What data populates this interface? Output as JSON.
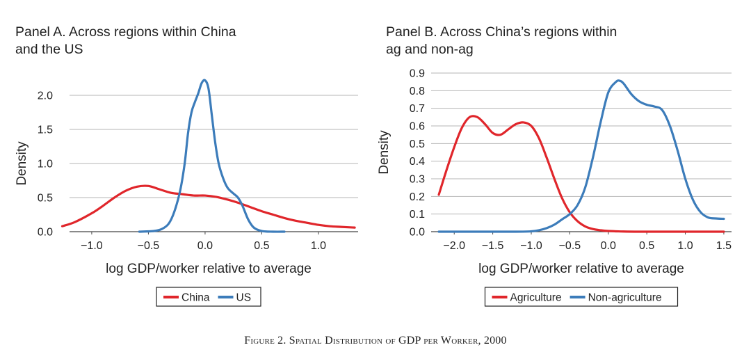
{
  "caption": "Figure 2. Spatial Distribution of GDP per Worker, 2000",
  "chart_data": [
    {
      "type": "line",
      "title": "Panel A. Across regions within China and the US",
      "title_lines": [
        "Panel A. Across regions within China",
        "and the US"
      ],
      "xlabel": "log GDP/worker relative to average",
      "ylabel": "Density",
      "xlim": [
        -1.3,
        1.35
      ],
      "ylim": [
        0,
        2.3
      ],
      "xticks": [
        -1.0,
        -0.5,
        0.0,
        0.5,
        1.0
      ],
      "xtick_labels": [
        "−1.0",
        "−0.5",
        "0.0",
        "0.5",
        "1.0"
      ],
      "yticks": [
        0.0,
        0.5,
        1.0,
        1.5,
        2.0
      ],
      "ytick_labels": [
        "0.0",
        "0.5",
        "1.0",
        "1.5",
        "2.0"
      ],
      "grid": "horizontal",
      "legend_position": "bottom",
      "series": [
        {
          "name": "China",
          "color": "#e0262b",
          "x": [
            -1.26,
            -1.15,
            -1.0,
            -0.9,
            -0.8,
            -0.7,
            -0.6,
            -0.5,
            -0.4,
            -0.3,
            -0.2,
            -0.1,
            0.0,
            0.1,
            0.2,
            0.3,
            0.4,
            0.5,
            0.6,
            0.7,
            0.8,
            0.9,
            1.0,
            1.1,
            1.2,
            1.32
          ],
          "y": [
            0.08,
            0.14,
            0.27,
            0.38,
            0.5,
            0.6,
            0.66,
            0.67,
            0.62,
            0.57,
            0.55,
            0.53,
            0.53,
            0.51,
            0.47,
            0.42,
            0.36,
            0.3,
            0.25,
            0.2,
            0.16,
            0.13,
            0.1,
            0.08,
            0.07,
            0.06
          ]
        },
        {
          "name": "US",
          "color": "#3c7cba",
          "x": [
            -0.58,
            -0.45,
            -0.38,
            -0.32,
            -0.27,
            -0.22,
            -0.18,
            -0.15,
            -0.12,
            -0.09,
            -0.06,
            -0.03,
            0.0,
            0.03,
            0.06,
            0.09,
            0.12,
            0.16,
            0.2,
            0.25,
            0.29,
            0.33,
            0.38,
            0.43,
            0.5,
            0.6,
            0.7
          ],
          "y": [
            0.0,
            0.01,
            0.04,
            0.12,
            0.3,
            0.6,
            1.0,
            1.45,
            1.75,
            1.9,
            2.03,
            2.18,
            2.22,
            2.1,
            1.7,
            1.3,
            1.0,
            0.78,
            0.64,
            0.56,
            0.5,
            0.38,
            0.18,
            0.06,
            0.01,
            0.0,
            0.0
          ]
        }
      ]
    },
    {
      "type": "line",
      "title": "Panel B. Across China’s regions within ag and non-ag",
      "title_lines": [
        "Panel B. Across China’s regions within",
        "ag and non-ag"
      ],
      "xlabel": "log GDP/worker relative to average",
      "ylabel": "Density",
      "xlim": [
        -2.3,
        1.6
      ],
      "ylim": [
        0,
        0.9
      ],
      "xticks": [
        -2.0,
        -1.5,
        -1.0,
        -0.5,
        0.0,
        0.5,
        1.0,
        1.5
      ],
      "xtick_labels": [
        "−2.0",
        "−1.5",
        "−1.0",
        "−0.5",
        "0.0",
        "0.5",
        "1.0",
        "1.5"
      ],
      "yticks": [
        0.0,
        0.1,
        0.2,
        0.3,
        0.4,
        0.5,
        0.6,
        0.7,
        0.8,
        0.9
      ],
      "ytick_labels": [
        "0.0",
        "0.1",
        "0.2",
        "0.3",
        "0.4",
        "0.5",
        "0.6",
        "0.7",
        "0.8",
        "0.9"
      ],
      "grid": "horizontal",
      "legend_position": "bottom",
      "series": [
        {
          "name": "Agriculture",
          "color": "#e0262b",
          "x": [
            -2.2,
            -2.1,
            -2.0,
            -1.9,
            -1.8,
            -1.7,
            -1.6,
            -1.5,
            -1.4,
            -1.3,
            -1.2,
            -1.1,
            -1.0,
            -0.9,
            -0.8,
            -0.7,
            -0.6,
            -0.5,
            -0.4,
            -0.3,
            -0.2,
            -0.1,
            0.0,
            0.2,
            0.4,
            0.8,
            1.2,
            1.5
          ],
          "y": [
            0.21,
            0.35,
            0.48,
            0.59,
            0.65,
            0.65,
            0.61,
            0.56,
            0.55,
            0.58,
            0.61,
            0.62,
            0.6,
            0.53,
            0.42,
            0.3,
            0.19,
            0.11,
            0.06,
            0.03,
            0.015,
            0.008,
            0.004,
            0.001,
            0.0,
            0.0,
            0.0,
            0.0
          ]
        },
        {
          "name": "Non-agriculture",
          "color": "#3c7cba",
          "x": [
            -2.2,
            -1.5,
            -1.2,
            -1.0,
            -0.9,
            -0.8,
            -0.7,
            -0.6,
            -0.5,
            -0.4,
            -0.3,
            -0.2,
            -0.1,
            0.0,
            0.1,
            0.15,
            0.2,
            0.3,
            0.4,
            0.5,
            0.6,
            0.7,
            0.8,
            0.9,
            1.0,
            1.1,
            1.2,
            1.3,
            1.4,
            1.5
          ],
          "y": [
            0.0,
            0.0,
            0.0,
            0.002,
            0.008,
            0.02,
            0.04,
            0.07,
            0.1,
            0.15,
            0.25,
            0.42,
            0.62,
            0.79,
            0.85,
            0.856,
            0.84,
            0.78,
            0.74,
            0.72,
            0.71,
            0.69,
            0.6,
            0.46,
            0.3,
            0.18,
            0.11,
            0.08,
            0.075,
            0.073
          ]
        }
      ]
    }
  ]
}
